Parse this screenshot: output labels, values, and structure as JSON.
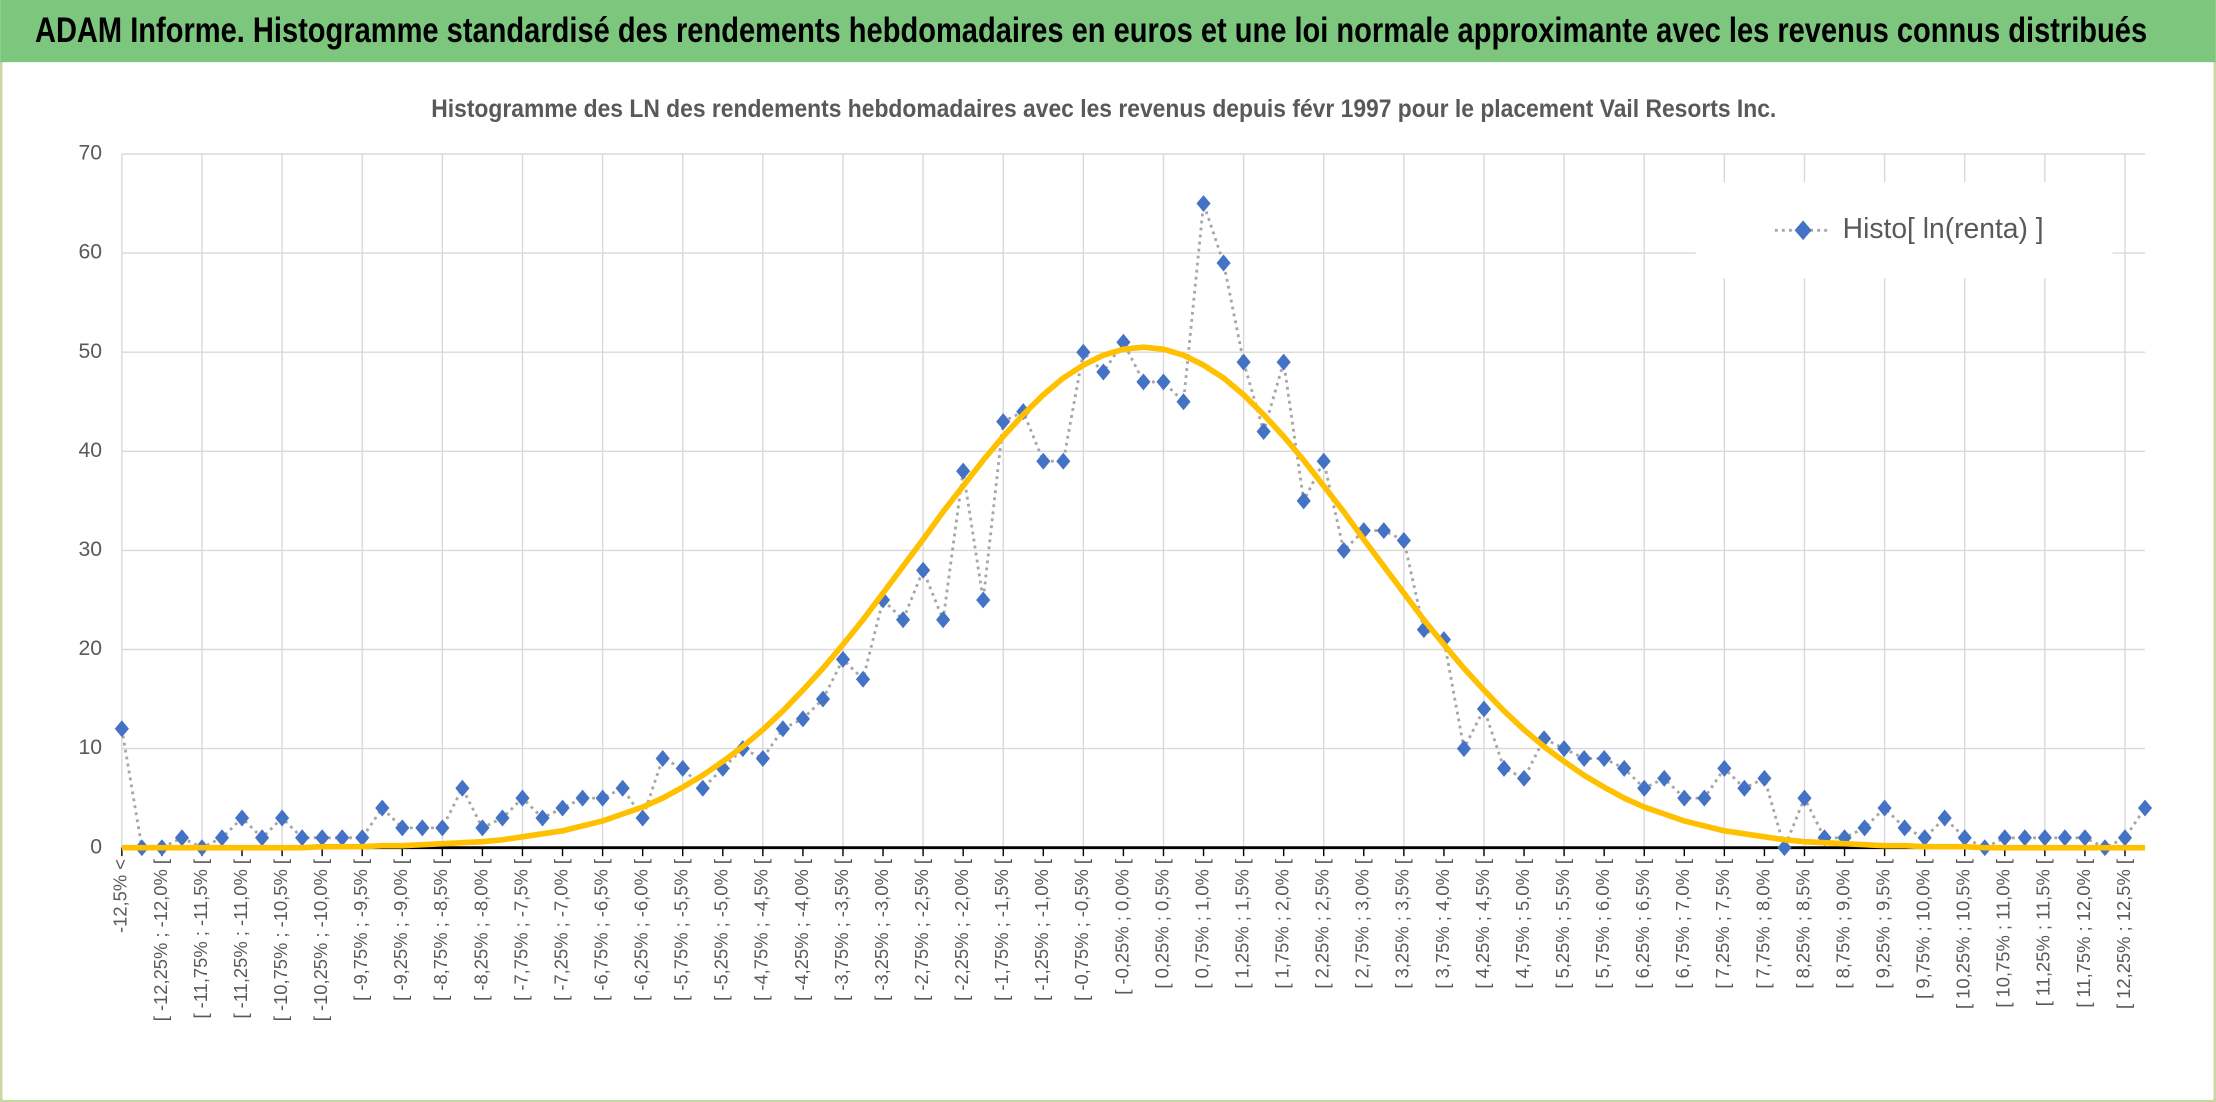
{
  "page_title": "ADAM Informe. Histogramme standardisé des rendements hebdomadaires en euros et une loi normale approximante avec les revenus connus distribués",
  "chart_data": {
    "type": "line",
    "title": "Histogramme des LN des rendements hebdomadaires avec les revenus depuis févr 1997 pour le placement Vail Resorts Inc.",
    "categories": [
      "-12,5% <",
      null,
      "[ -12,25% ; -12,0% [",
      null,
      "[ -11,75% ; -11,5% [",
      null,
      "[ -11,25% ; -11,0% [",
      null,
      "[ -10,75% ; -10,5% [",
      null,
      "[ -10,25% ; -10,0% [",
      null,
      "[ -9,75% ; -9,5% [",
      null,
      "[ -9,25% ; -9,0% [",
      null,
      "[ -8,75% ; -8,5% [",
      null,
      "[ -8,25% ; -8,0% [",
      null,
      "[ -7,75% ; -7,5% [",
      null,
      "[ -7,25% ; -7,0% [",
      null,
      "[ -6,75% ; -6,5% [",
      null,
      "[ -6,25% ; -6,0% [",
      null,
      "[ -5,75% ; -5,5% [",
      null,
      "[ -5,25% ; -5,0% [",
      null,
      "[ -4,75% ; -4,5% [",
      null,
      "[ -4,25% ; -4,0% [",
      null,
      "[ -3,75% ; -3,5% [",
      null,
      "[ -3,25% ; -3,0% [",
      null,
      "[ -2,75% ; -2,5% [",
      null,
      "[ -2,25% ; -2,0% [",
      null,
      "[ -1,75% ; -1,5% [",
      null,
      "[ -1,25% ; -1,0% [",
      null,
      "[ -0,75% ; -0,5% [",
      null,
      "[ -0,25% ; 0,0% [",
      null,
      "[ 0,25% ; 0,5% [",
      null,
      "[ 0,75% ; 1,0% [",
      null,
      "[ 1,25% ; 1,5% [",
      null,
      "[ 1,75% ; 2,0% [",
      null,
      "[ 2,25% ; 2,5% [",
      null,
      "[ 2,75% ; 3,0% [",
      null,
      "[ 3,25% ; 3,5% [",
      null,
      "[ 3,75% ; 4,0% [",
      null,
      "[ 4,25% ; 4,5% [",
      null,
      "[ 4,75% ; 5,0% [",
      null,
      "[ 5,25% ; 5,5% [",
      null,
      "[ 5,75% ; 6,0% [",
      null,
      "[ 6,25% ; 6,5% [",
      null,
      "[ 6,75% ; 7,0% [",
      null,
      "[ 7,25% ; 7,5% [",
      null,
      "[ 7,75% ; 8,0% [",
      null,
      "[ 8,25% ; 8,5% [",
      null,
      "[ 8,75% ; 9,0% [",
      null,
      "[ 9,25% ; 9,5% [",
      null,
      "[ 9,75% ; 10,0% [",
      null,
      "[ 10,25% ; 10,5% [",
      null,
      "[ 10,75% ; 11,0% [",
      null,
      "[ 11,25% ; 11,5% [",
      null,
      "[ 11,75% ; 12,0% [",
      null,
      "[ 12,25% ; 12,5% [",
      null
    ],
    "series": [
      {
        "name": "Histo[ ln(renta) ]",
        "color": "#4472c4",
        "line_color": "#a6a6a6",
        "values": [
          12,
          0,
          0,
          1,
          0,
          1,
          3,
          1,
          3,
          1,
          1,
          1,
          1,
          4,
          2,
          2,
          2,
          6,
          2,
          3,
          5,
          3,
          4,
          5,
          5,
          6,
          3,
          9,
          8,
          6,
          8,
          10,
          9,
          12,
          13,
          15,
          19,
          17,
          25,
          23,
          28,
          23,
          38,
          25,
          43,
          44,
          39,
          39,
          50,
          48,
          51,
          47,
          47,
          45,
          65,
          59,
          49,
          42,
          49,
          35,
          39,
          30,
          32,
          32,
          31,
          22,
          21,
          10,
          14,
          8,
          7,
          11,
          10,
          9,
          9,
          8,
          6,
          7,
          5,
          5,
          8,
          6,
          7,
          0,
          5,
          1,
          1,
          2,
          4,
          2,
          1,
          3,
          1,
          0,
          1,
          1,
          1,
          1,
          1,
          0,
          1,
          4
        ]
      },
      {
        "color": "#ffc000",
        "values": [
          0,
          0,
          0,
          0,
          0,
          0,
          0,
          0,
          0,
          0,
          0.1,
          0.1,
          0.1,
          0.2,
          0.2,
          0.3,
          0.4,
          0.5,
          0.6,
          0.8,
          1.1,
          1.4,
          1.7,
          2.2,
          2.7,
          3.4,
          4.1,
          5.0,
          6.1,
          7.3,
          8.7,
          10.2,
          11.9,
          13.8,
          15.9,
          18.1,
          20.5,
          23.0,
          25.7,
          28.4,
          31.1,
          33.9,
          36.5,
          39.1,
          41.5,
          43.7,
          45.7,
          47.4,
          48.7,
          49.7,
          50.3,
          50.5,
          50.3,
          49.7,
          48.7,
          47.4,
          45.7,
          43.7,
          41.5,
          39.1,
          36.5,
          33.9,
          31.1,
          28.4,
          25.7,
          23.0,
          20.5,
          18.1,
          15.9,
          13.8,
          11.9,
          10.2,
          8.7,
          7.3,
          6.1,
          5.0,
          4.1,
          3.4,
          2.7,
          2.2,
          1.7,
          1.4,
          1.1,
          0.8,
          0.6,
          0.5,
          0.4,
          0.3,
          0.2,
          0.2,
          0.1,
          0.1,
          0.1,
          0,
          0,
          0,
          0,
          0,
          0,
          0,
          0,
          0
        ]
      }
    ],
    "ylim": [
      0,
      70
    ],
    "yticks": [
      0,
      10,
      20,
      30,
      40,
      50,
      60,
      70
    ],
    "grid": true,
    "legend": "top-right"
  }
}
